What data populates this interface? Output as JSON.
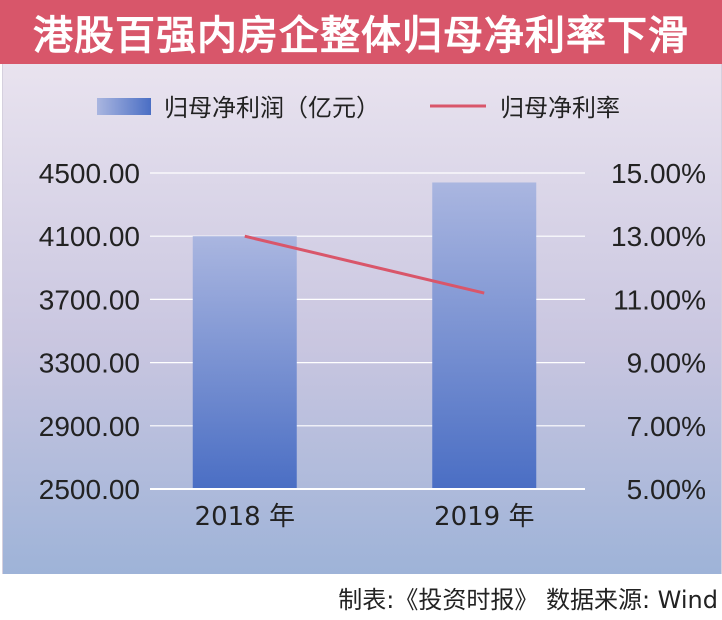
{
  "chart_data": {
    "type": "bar",
    "title": "港股百强内房企整体归母净利率下滑",
    "categories": [
      "2018 年",
      "2019 年"
    ],
    "series": [
      {
        "name": "归母净利润（亿元）",
        "type": "bar",
        "axis": "left",
        "values": [
          4100,
          4440
        ]
      },
      {
        "name": "归母净利率",
        "type": "line",
        "axis": "right",
        "values": [
          13.0,
          11.2
        ]
      }
    ],
    "y_left": {
      "ylim": [
        2500,
        4500
      ],
      "ticks": [
        "4500.00",
        "4100.00",
        "3700.00",
        "3300.00",
        "2900.00",
        "2500.00"
      ],
      "tick_values": [
        4500,
        4100,
        3700,
        3300,
        2900,
        2500
      ]
    },
    "y_right": {
      "ylim": [
        5,
        15
      ],
      "ticks": [
        "15.00%",
        "13.00%",
        "11.00%",
        "9.00%",
        "7.00%",
        "5.00%"
      ],
      "tick_values": [
        15,
        13,
        11,
        9,
        7,
        5
      ]
    },
    "grid": true,
    "legend": "top",
    "colors": {
      "title_bg": "#d8566a",
      "bar_top": "#aab6e0",
      "bar_bottom": "#4a6ec4",
      "line": "#d9566a"
    }
  },
  "footer": "制表:《投资时报》 数据来源: Wind"
}
